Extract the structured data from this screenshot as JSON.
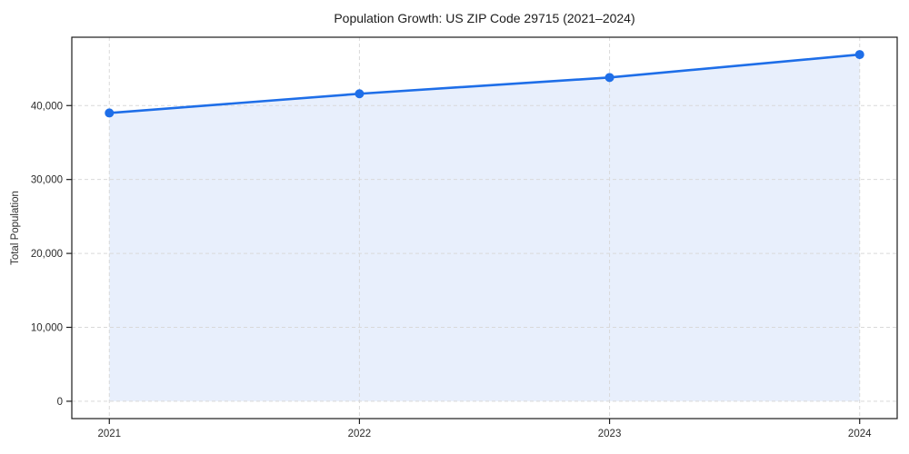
{
  "chart_data": {
    "type": "area",
    "title": "Population Growth: US ZIP Code 29715 (2021–2024)",
    "xlabel": "",
    "ylabel": "Total Population",
    "series_name": "Total Population",
    "categories": [
      "2021",
      "2022",
      "2023",
      "2024"
    ],
    "values": [
      39000,
      41600,
      43800,
      46900
    ],
    "yticks": {
      "values": [
        0,
        10000,
        20000,
        30000,
        40000
      ],
      "labels": [
        "0",
        "10,000",
        "20,000",
        "30,000",
        "40,000"
      ]
    },
    "ylim": [
      -2345,
      49245
    ],
    "xlim_index": [
      -0.15,
      3.15
    ],
    "grid": true,
    "grid_style": "dashed",
    "legend": "none",
    "colors": {
      "line": "#1e6ee8",
      "marker": "#1e6ee8",
      "fill": "#e8effc",
      "grid": "#d9d9d9",
      "spine": "#1c1c1c",
      "text": "#2b2b2b",
      "background": "#ffffff"
    }
  }
}
